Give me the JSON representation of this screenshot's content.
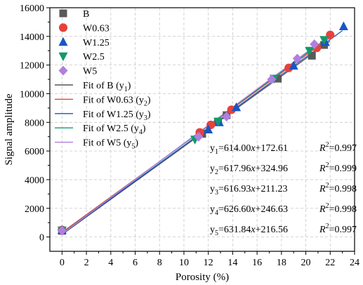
{
  "chart_data": {
    "type": "scatter",
    "xlabel": "Porosity (%)",
    "ylabel": "Signal amplitude",
    "xlim": [
      -1,
      24
    ],
    "ylim": [
      -1000,
      16000
    ],
    "xticks": [
      0,
      2,
      4,
      6,
      8,
      10,
      12,
      14,
      16,
      18,
      20,
      22,
      24
    ],
    "yticks": [
      0,
      2000,
      4000,
      6000,
      8000,
      10000,
      12000,
      14000,
      16000
    ],
    "grid": true,
    "legend_position": "top-left",
    "series": [
      {
        "name": "B",
        "marker": "square",
        "color": "#595959",
        "x": [
          0,
          11.5,
          12.8,
          13.5,
          17.7,
          20.5,
          21.5
        ],
        "y": [
          430,
          7200,
          8050,
          8500,
          11050,
          12650,
          13400
        ]
      },
      {
        "name": "W0.63",
        "marker": "circle",
        "color": "#e8413b",
        "x": [
          0,
          11.3,
          12.2,
          13.9,
          18.6,
          20.9,
          22.0
        ],
        "y": [
          490,
          7300,
          7820,
          8880,
          11800,
          13200,
          14100
        ]
      },
      {
        "name": "W1.25",
        "marker": "triangle-up",
        "color": "#1756c4",
        "x": [
          0,
          12.0,
          12.9,
          14.3,
          19.0,
          21.6,
          23.1
        ],
        "y": [
          480,
          7500,
          8000,
          9050,
          11950,
          13600,
          14700
        ]
      },
      {
        "name": "W2.5",
        "marker": "triangle-down",
        "color": "#119a6a",
        "x": [
          0,
          10.9,
          12.8,
          17.4,
          20.3,
          21.5
        ],
        "y": [
          460,
          6800,
          8050,
          11050,
          13000,
          13750
        ]
      },
      {
        "name": "W5",
        "marker": "diamond",
        "color": "#b07fe0",
        "x": [
          0,
          11.2,
          13.5,
          17.2,
          19.3,
          20.7
        ],
        "y": [
          440,
          7000,
          8400,
          11000,
          12450,
          13450
        ]
      }
    ],
    "fits": [
      {
        "name": "Fit of B (y",
        "sub": "1",
        "color": "#555555",
        "slope": 614.0,
        "intercept": 172.61,
        "x_range": [
          0,
          22
        ]
      },
      {
        "name": "Fit of W0.63 (y",
        "sub": "2",
        "color": "#e8413b",
        "slope": 617.96,
        "intercept": 324.96,
        "x_range": [
          0,
          22
        ]
      },
      {
        "name": "Fit of W1.25 (y",
        "sub": "3",
        "color": "#1756c4",
        "slope": 616.93,
        "intercept": 211.23,
        "x_range": [
          0,
          23
        ]
      },
      {
        "name": "Fit of W2.5 (y",
        "sub": "4",
        "color": "#119a6a",
        "slope": 626.6,
        "intercept": 246.63,
        "x_range": [
          0,
          21.5
        ]
      },
      {
        "name": "Fit of W5 (y",
        "sub": "5",
        "color": "#b07fe0",
        "slope": 631.84,
        "intercept": 216.56,
        "x_range": [
          0,
          21
        ]
      }
    ],
    "equations": [
      {
        "sub": "1",
        "text": "=614.00x+172.61",
        "r2": "=0.997"
      },
      {
        "sub": "2",
        "text": "=617.96x+324.96",
        "r2": "=0.999"
      },
      {
        "sub": "3",
        "text": "=616.93x+211.23",
        "r2": "=0.998"
      },
      {
        "sub": "4",
        "text": "=626.60x+246.63",
        "r2": "=0.998"
      },
      {
        "sub": "5",
        "text": "=631.84x+216.56",
        "r2": "=0.997"
      }
    ]
  }
}
